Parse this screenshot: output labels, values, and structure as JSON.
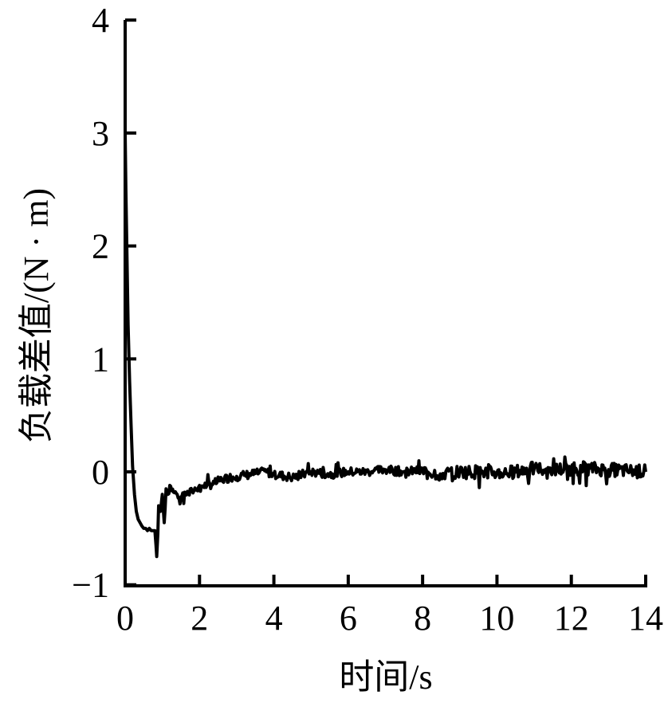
{
  "chart_data": {
    "type": "line",
    "title": "",
    "xlabel": "时间/s",
    "ylabel": "负载差值/(N · m)",
    "xlim": [
      0,
      14
    ],
    "ylim": [
      -1,
      4
    ],
    "x_ticks": [
      "0",
      "2",
      "4",
      "6",
      "8",
      "10",
      "12",
      "14"
    ],
    "y_ticks": [
      "−1",
      "0",
      "1",
      "2",
      "3",
      "4"
    ],
    "grid": false,
    "legend": null,
    "series": [
      {
        "name": "负载差值",
        "color": "#000000",
        "x": [
          0.0,
          0.02,
          0.05,
          0.08,
          0.12,
          0.16,
          0.2,
          0.25,
          0.3,
          0.35,
          0.4,
          0.45,
          0.5,
          0.55,
          0.6,
          0.65,
          0.7,
          0.75,
          0.8,
          0.83,
          0.85,
          0.88,
          0.9,
          0.95,
          1.0,
          1.05,
          1.1,
          1.15,
          1.2,
          1.3,
          1.4,
          1.5,
          1.6,
          1.7,
          1.8,
          1.9,
          2.0,
          2.2,
          2.4,
          2.6,
          2.8,
          3.0,
          3.2,
          3.4,
          3.6,
          3.8,
          4.0,
          4.5,
          5.0,
          5.5,
          6.0,
          6.5,
          7.0,
          7.5,
          8.0,
          8.5,
          9.0,
          9.5,
          10.0,
          10.5,
          11.0,
          11.5,
          12.0,
          12.5,
          13.0,
          13.5,
          14.0
        ],
        "y": [
          3.0,
          2.5,
          1.9,
          1.3,
          0.8,
          0.4,
          0.05,
          -0.2,
          -0.35,
          -0.42,
          -0.45,
          -0.48,
          -0.5,
          -0.5,
          -0.52,
          -0.5,
          -0.52,
          -0.52,
          -0.52,
          -0.65,
          -0.75,
          -0.55,
          -0.3,
          -0.35,
          -0.2,
          -0.45,
          -0.15,
          -0.2,
          -0.12,
          -0.18,
          -0.2,
          -0.22,
          -0.18,
          -0.2,
          -0.17,
          -0.15,
          -0.12,
          -0.12,
          -0.1,
          -0.07,
          -0.05,
          -0.04,
          -0.03,
          -0.02,
          -0.01,
          0.0,
          -0.02,
          -0.05,
          0.0,
          -0.02,
          0.0,
          0.0,
          0.02,
          0.0,
          0.01,
          -0.02,
          0.0,
          0.0,
          -0.01,
          0.0,
          0.03,
          0.02,
          0.03,
          0.03,
          0.02,
          0.01,
          0.0
        ]
      }
    ]
  },
  "axes": {
    "x_tick_values": [
      0,
      2,
      4,
      6,
      8,
      10,
      12,
      14
    ],
    "y_tick_values": [
      -1,
      0,
      1,
      2,
      3,
      4
    ]
  }
}
